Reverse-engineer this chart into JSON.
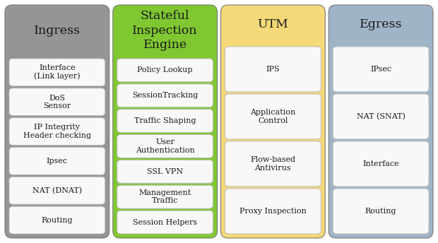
{
  "columns": [
    {
      "title": "Ingress",
      "bg_color": "#959595",
      "title_color": "#1a1a1a",
      "items": [
        "Interface\n(Link layer)",
        "DoS\nSensor",
        "IP Integrity\nHeader checking",
        "Ipsec",
        "NAT (DNAT)",
        "Routing"
      ]
    },
    {
      "title": "Stateful\nInspection\nEngine",
      "bg_color": "#80c832",
      "title_color": "#1a1a1a",
      "items": [
        "Policy Lookup",
        "SessionTracking",
        "Traffic Shaping",
        "User\nAuthentication",
        "SSL VPN",
        "Management\nTraffic",
        "Session Helpers"
      ]
    },
    {
      "title": "UTM",
      "bg_color": "#f5d978",
      "title_color": "#1a1a1a",
      "items": [
        "IPS",
        "Application\nControl",
        "Flow-based\nAntivirus",
        "Proxy Inspection"
      ]
    },
    {
      "title": "Egress",
      "bg_color": "#a0b4c8",
      "title_color": "#1a1a1a",
      "items": [
        "IPsec",
        "NAT (SNAT)",
        "Interface",
        "Routing"
      ]
    }
  ],
  "fig_bg": "#ffffff",
  "box_bg": "#f8f8f8",
  "box_edge": "#bbbbbb",
  "box_text_color": "#1a1a1a",
  "title_fontsize": 12.5,
  "item_fontsize": 8.0,
  "fig_w": 6.2,
  "fig_h": 3.44,
  "dpi": 100
}
